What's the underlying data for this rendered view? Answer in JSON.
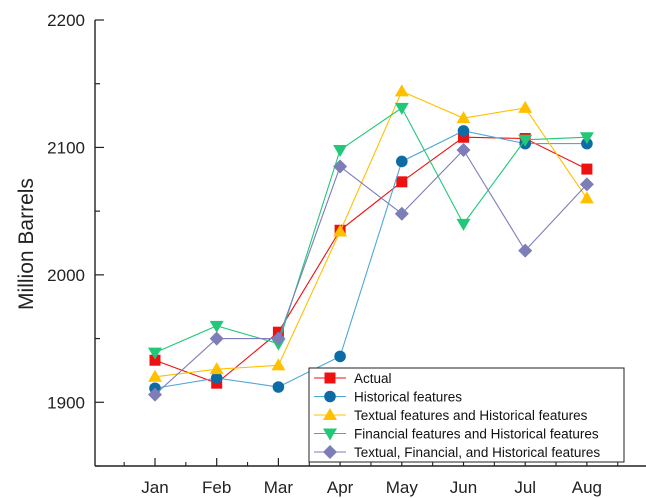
{
  "chart_data": {
    "type": "line",
    "title": "",
    "xlabel": "",
    "ylabel": "Million Barrels",
    "categories": [
      "Jan",
      "Feb",
      "Mar",
      "Apr",
      "May",
      "Jun",
      "Jul",
      "Aug"
    ],
    "ylim": [
      1850,
      2200
    ],
    "yticks": [
      1900,
      2000,
      2100,
      2200
    ],
    "grid": false,
    "legend_position": "bottom-right",
    "series": [
      {
        "name": "Actual",
        "color": "#ee1111",
        "marker": "square",
        "values": [
          1933,
          1915,
          1955,
          2035,
          2073,
          2108,
          2107,
          2083
        ]
      },
      {
        "name": "Historical features",
        "color": "#0e6ca5",
        "line_color": "#4fa8d8",
        "marker": "circle",
        "values": [
          1911,
          1919,
          1912,
          1936,
          2089,
          2113,
          2103,
          2103
        ]
      },
      {
        "name": "Textual features and Historical features",
        "color": "#ffc000",
        "marker": "triangle-up",
        "values": [
          1920,
          1926,
          1929,
          2034,
          2144,
          2123,
          2131,
          2060
        ]
      },
      {
        "name": "Financial features and Historical features",
        "color": "#20c878",
        "marker": "triangle-down",
        "values": [
          1939,
          1960,
          1946,
          2098,
          2131,
          2040,
          2106,
          2108
        ]
      },
      {
        "name": "Textual, Financial, and Historical features",
        "color": "#7d7db8",
        "marker": "diamond",
        "values": [
          1906,
          1950,
          1950,
          2085,
          2048,
          2098,
          2019,
          2071
        ]
      }
    ]
  }
}
